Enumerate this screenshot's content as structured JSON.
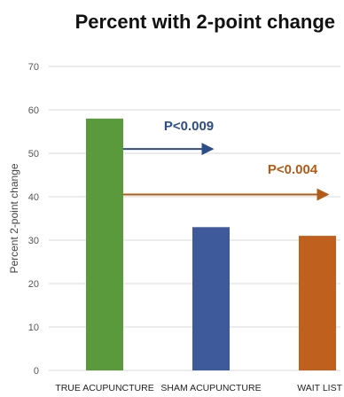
{
  "chart_data": {
    "type": "bar",
    "title": "Percent with 2-point change",
    "ylabel": "Percent 2-point change",
    "xlabel": "",
    "categories": [
      "TRUE ACUPUNCTURE",
      "SHAM ACUPUNCTURE",
      "WAIT LIST"
    ],
    "values": [
      58,
      33,
      31
    ],
    "colors": [
      "#5b9a3c",
      "#3e5a9a",
      "#c0601f"
    ],
    "ylim": [
      0,
      70
    ],
    "yticks": [
      0,
      10,
      20,
      30,
      40,
      50,
      60,
      70
    ],
    "grid": true,
    "annotations": [
      {
        "text": "P<0.009",
        "color": "#2c4d87",
        "at_value": 51,
        "from_category": 0,
        "to_category": 1
      },
      {
        "text": "P<0.004",
        "color": "#b35a14",
        "at_value": 40.5,
        "from_category": 0,
        "to_category": 2
      }
    ]
  }
}
